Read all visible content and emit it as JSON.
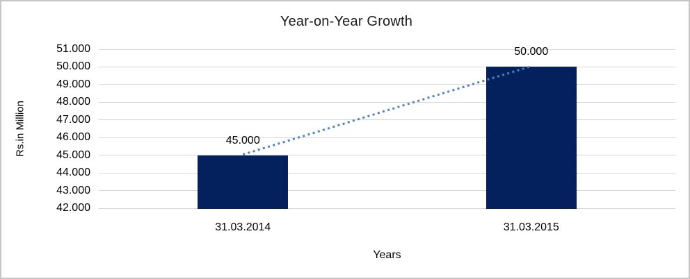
{
  "chart_data": {
    "type": "bar",
    "title": "Year-on-Year Growth",
    "xlabel": "Years",
    "ylabel": "Rs.in Million",
    "categories": [
      "31.03.2014",
      "31.03.2015"
    ],
    "series": [
      {
        "name": "Rs.in Million",
        "values": [
          45000,
          50000
        ],
        "value_labels": [
          "45.000",
          "50.000"
        ]
      }
    ],
    "ylim": [
      42000,
      51000
    ],
    "yticks": [
      {
        "value": 51000,
        "label": "51.000"
      },
      {
        "value": 50000,
        "label": "50.000"
      },
      {
        "value": 49000,
        "label": "49.000"
      },
      {
        "value": 48000,
        "label": "48.000"
      },
      {
        "value": 47000,
        "label": "47.000"
      },
      {
        "value": 46000,
        "label": "46.000"
      },
      {
        "value": 45000,
        "label": "45.000"
      },
      {
        "value": 44000,
        "label": "44.000"
      },
      {
        "value": 43000,
        "label": "43.000"
      },
      {
        "value": 42000,
        "label": "42.000"
      }
    ],
    "grid": "horizontal",
    "legend": "none",
    "trendline": {
      "type": "linear",
      "style": "dotted"
    },
    "colors": {
      "bar": "#04215e",
      "trendline": "#4f81bd",
      "gridline": "#d6d6d6",
      "text": "#000000",
      "frame_border": "#c6c6c6"
    }
  }
}
